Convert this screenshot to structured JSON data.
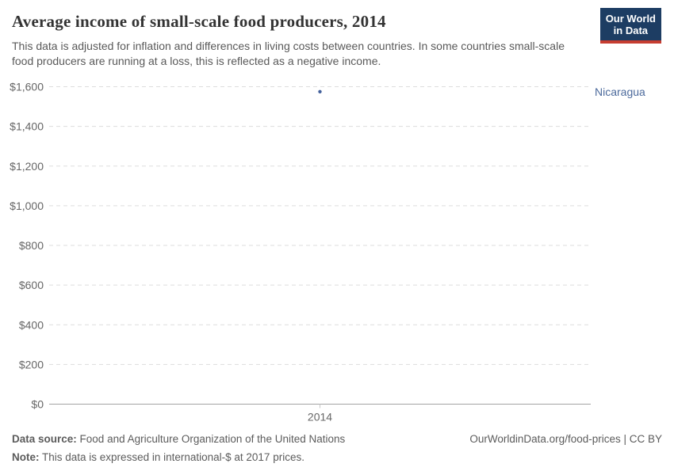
{
  "header": {
    "title": "Average income of small-scale food producers, 2014",
    "subtitle": "This data is adjusted for inflation and differences in living costs between countries. In some countries small-scale food producers are running at a loss, this is reflected as a negative income.",
    "logo": {
      "line1": "Our World",
      "line2": "in Data"
    }
  },
  "chart_data": {
    "type": "scatter",
    "title": "Average income of small-scale food producers, 2014",
    "x": [
      2014
    ],
    "series": [
      {
        "name": "Nicaragua",
        "values": [
          1575
        ]
      }
    ],
    "ylim": [
      0,
      1600
    ],
    "yticks": [
      {
        "value": 0,
        "label": "$0"
      },
      {
        "value": 200,
        "label": "$200"
      },
      {
        "value": 400,
        "label": "$400"
      },
      {
        "value": 600,
        "label": "$600"
      },
      {
        "value": 800,
        "label": "$800"
      },
      {
        "value": 1000,
        "label": "$1,000"
      },
      {
        "value": 1200,
        "label": "$1,200"
      },
      {
        "value": 1400,
        "label": "$1,400"
      },
      {
        "value": 1600,
        "label": "$1,600"
      }
    ],
    "xticks": [
      {
        "value": 2014,
        "label": "2014"
      }
    ],
    "xlabel": "",
    "ylabel": "",
    "grid": "horizontal-dashed",
    "legend_position": "right-of-point",
    "point_color": "#44619c",
    "label_color": "#4c6a9c",
    "gridline_color": "#dddddd",
    "zero_line_color": "#a3a3a3"
  },
  "footer": {
    "source_label": "Data source:",
    "source_text": "Food and Agriculture Organization of the United Nations",
    "note_label": "Note:",
    "note_text": "This data is expressed in international-$ at 2017 prices.",
    "link_text": "OurWorldinData.org/food-prices | CC BY"
  }
}
